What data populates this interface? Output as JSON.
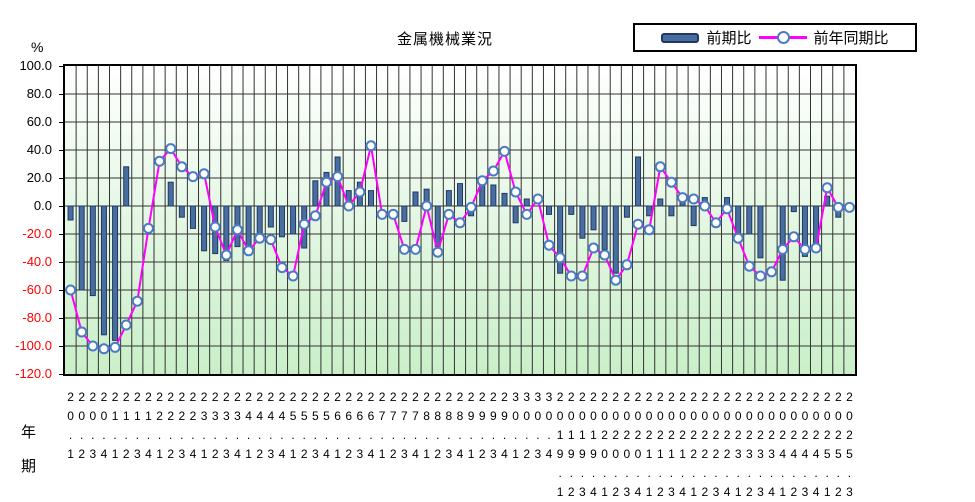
{
  "title": "金属機械業況",
  "legend": {
    "bar_label": "前期比",
    "line_label": "前年同期比"
  },
  "y_axis": {
    "unit": "%",
    "tick_labels": [
      "100.0",
      "80.0",
      "60.0",
      "40.0",
      "20.0",
      "0.0",
      "-20.0",
      "-40.0",
      "-60.0",
      "-80.0",
      "-100.0",
      "-120.0"
    ]
  },
  "x_axis": {
    "title_year": "年",
    "title_period": "期"
  },
  "colors": {
    "bar_fill": "#4a6da0",
    "bar_border": "#1f3864",
    "line": "#ff00ff",
    "marker_ring": "#4a7cc4",
    "marker_fill": "#ffffff",
    "tick_positive": "#000000",
    "tick_negative": "#ff0000",
    "gridline": "#333333",
    "plot_bg_top": "#ffffff",
    "plot_bg_bottom": "#c9efc8"
  },
  "chart_data": {
    "type": "combo-bar-line",
    "title": "金属機械業況",
    "ylabel": "%",
    "ylim": [
      -120,
      100
    ],
    "ytick_step": 20,
    "grid": true,
    "legend_position": "top-right",
    "categories": [
      "20.1",
      "20.2",
      "20.3",
      "20.4",
      "21.1",
      "21.2",
      "21.3",
      "21.4",
      "22.1",
      "22.2",
      "22.3",
      "22.4",
      "23.1",
      "23.2",
      "23.3",
      "23.4",
      "24.1",
      "24.2",
      "24.3",
      "24.4",
      "25.1",
      "25.2",
      "25.3",
      "25.4",
      "26.1",
      "26.2",
      "26.3",
      "26.4",
      "27.1",
      "27.2",
      "27.3",
      "27.4",
      "28.1",
      "28.2",
      "28.3",
      "28.4",
      "29.1",
      "29.2",
      "29.3",
      "29.4",
      "30.1",
      "30.2",
      "30.3",
      "30.4",
      "2019.1",
      "2019.2",
      "2019.3",
      "2019.4",
      "2020.1",
      "2020.2",
      "2020.3",
      "2020.4",
      "2021.1",
      "2021.2",
      "2021.3",
      "2021.4",
      "2022.1",
      "2022.2",
      "2022.3",
      "2022.4",
      "2023.1",
      "2023.2",
      "2023.3",
      "2023.4",
      "2024.1",
      "2024.2",
      "2024.3",
      "2024.4",
      "2025.1",
      "2025.2",
      "2025.3"
    ],
    "series": [
      {
        "name": "前期比",
        "type": "bar",
        "values": [
          -10,
          -60,
          -64,
          -92,
          -96,
          28,
          0,
          0,
          0,
          17,
          -8,
          -16,
          -32,
          -34,
          -39,
          -29,
          -33,
          -21,
          -15,
          -22,
          -20,
          -30,
          18,
          24,
          35,
          11,
          17,
          11,
          0,
          0,
          -11,
          10,
          12,
          -29,
          11,
          16,
          -7,
          17,
          15,
          9,
          -12,
          5,
          0,
          -6,
          -48,
          -6,
          -23,
          -17,
          -31,
          -48,
          -8,
          35,
          -7,
          5,
          -7,
          7,
          -14,
          6,
          0,
          6,
          -25,
          -20,
          -37,
          0,
          -53,
          -4,
          -36,
          -32,
          7,
          -8,
          0
        ]
      },
      {
        "name": "前年同期比",
        "type": "line",
        "values": [
          -60,
          -90,
          -100,
          -102,
          -101,
          -85,
          -68,
          -16,
          32,
          41,
          28,
          21,
          23,
          -15,
          -35,
          -17,
          -32,
          -23,
          -24,
          -44,
          -50,
          -13,
          -7,
          17,
          21,
          0,
          10,
          43,
          -6,
          -6,
          -31,
          -31,
          0,
          -33,
          -6,
          -12,
          -1,
          18,
          25,
          39,
          10,
          -6,
          5,
          -28,
          -37,
          -50,
          -50,
          -30,
          -35,
          -53,
          -42,
          -13,
          -17,
          28,
          17,
          6,
          5,
          0,
          -12,
          -2,
          -23,
          -43,
          -50,
          -47,
          -31,
          -22,
          -31,
          -30,
          13,
          -1,
          -1
        ]
      }
    ]
  }
}
